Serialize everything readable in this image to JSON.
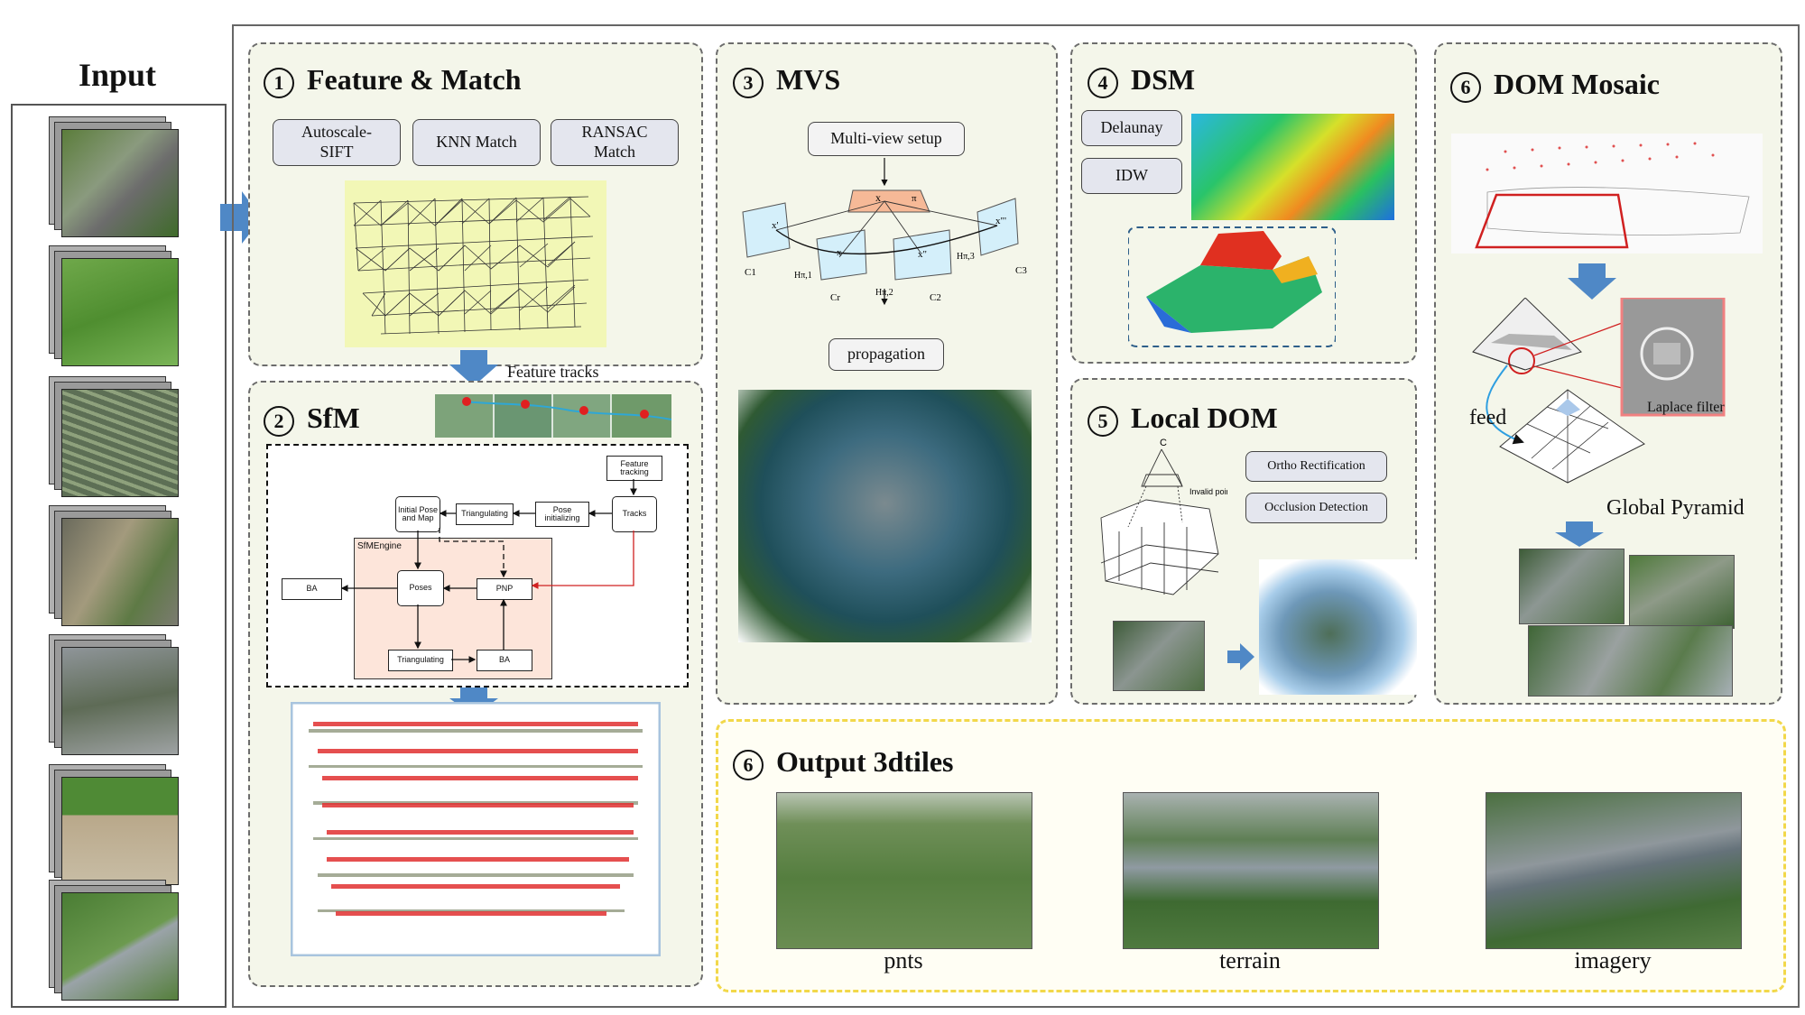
{
  "input": {
    "title": "Input"
  },
  "panels": {
    "feature_match": {
      "num": "1",
      "title": "Feature & Match",
      "buttons": [
        "Autoscale-\nSIFT",
        "KNN Match",
        "RANSAC\nMatch"
      ]
    },
    "sfm": {
      "num": "2",
      "title": "SfM",
      "feature_tracks": "Feature tracks",
      "flow": {
        "feature_tracking": "Feature tracking",
        "tracks": "Tracks",
        "pose_init": "Pose initializing",
        "triangulating_top": "Triangulating",
        "initial_pose": "Initial Pose and Map",
        "engine": "SfMEngine",
        "ba_left": "BA",
        "poses": "Poses",
        "pnp": "PNP",
        "triangulating_bottom": "Triangulating",
        "ba_bottom": "BA"
      }
    },
    "mvs": {
      "num": "3",
      "title": "MVS",
      "setup": "Multi-view  setup",
      "propagation": "propagation",
      "labels": {
        "x": "x",
        "pi": "π",
        "c1": "C1",
        "c2": "C2",
        "c3": "C3",
        "cr": "Cr",
        "h1": "Hπ,1",
        "h2": "Hπ,2",
        "h3": "Hπ,3",
        "xp": "x'",
        "xpp": "x\"",
        "xppp": "x\"'"
      }
    },
    "dsm": {
      "num": "4",
      "title": "DSM",
      "buttons": [
        "Delaunay",
        "IDW"
      ]
    },
    "local_dom": {
      "num": "5",
      "title": "Local DOM",
      "buttons": [
        "Ortho Rectification",
        "Occlusion Detection"
      ],
      "c_label": "C",
      "invalid": "Invalid point"
    },
    "dom_mosaic": {
      "num": "6",
      "title": "DOM  Mosaic",
      "feed": "feed",
      "laplace": "Laplace filter",
      "pyramid": "Global Pyramid"
    },
    "output": {
      "num": "6",
      "title": "Output 3dtiles",
      "captions": [
        "pnts",
        "terrain",
        "imagery"
      ]
    }
  },
  "colors": {
    "panel_bg": "#f4f6ea",
    "sfm_box": "#fde5da",
    "arrow": "#4f88c6",
    "output_border": "#f2d84a"
  }
}
